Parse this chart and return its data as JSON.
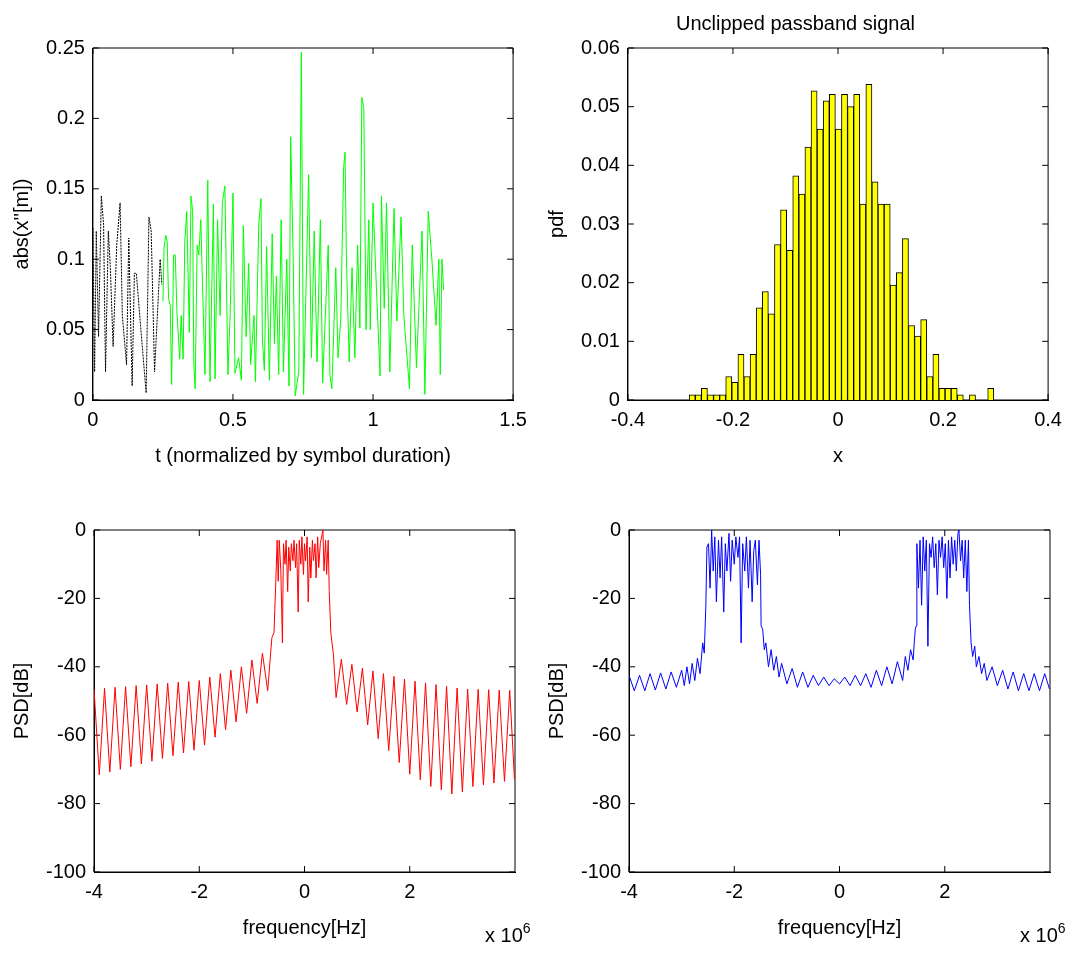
{
  "chart_data": [
    {
      "type": "line",
      "xlabel": "t (normalized by symbol duration)",
      "ylabel": "abs(x''[m])",
      "xlim": [
        0,
        1.5
      ],
      "xticks": [
        0,
        0.5,
        1,
        1.5
      ],
      "ylim": [
        0,
        0.25
      ],
      "yticks": [
        0,
        0.05,
        0.1,
        0.15,
        0.2,
        0.25
      ],
      "series": [
        {
          "color": "#000000",
          "line_style": "dotted",
          "x": [
            0,
            0.006,
            0.012,
            0.02,
            0.03,
            0.038,
            0.045,
            0.055,
            0.062,
            0.072,
            0.085,
            0.097,
            0.105,
            0.12,
            0.128,
            0.14,
            0.148,
            0.155,
            0.165,
            0.19,
            0.2,
            0.208,
            0.22,
            0.24,
            0.246
          ],
          "values": [
            0.122,
            0.02,
            0.12,
            0.045,
            0.145,
            0.125,
            0.02,
            0.12,
            0.095,
            0.038,
            0.11,
            0.14,
            0.06,
            0.025,
            0.115,
            0.01,
            0.09,
            0.09,
            0.065,
            0.005,
            0.13,
            0.12,
            0.02,
            0.1,
            0.082
          ]
        },
        {
          "color": "#00ff00",
          "line_style": "solid",
          "x": [
            0.25,
            0.254,
            0.26,
            0.265,
            0.27,
            0.276,
            0.281,
            0.288,
            0.294,
            0.3,
            0.31,
            0.315,
            0.322,
            0.328,
            0.335,
            0.344,
            0.35,
            0.356,
            0.36,
            0.365,
            0.372,
            0.378,
            0.385,
            0.391,
            0.4,
            0.41,
            0.418,
            0.43,
            0.436,
            0.445,
            0.454,
            0.462,
            0.471,
            0.482,
            0.49,
            0.5,
            0.507,
            0.52,
            0.53,
            0.537,
            0.547,
            0.556,
            0.563,
            0.575,
            0.58,
            0.592,
            0.6,
            0.605,
            0.612,
            0.62,
            0.63,
            0.64,
            0.648,
            0.655,
            0.663,
            0.672,
            0.68,
            0.692,
            0.7,
            0.706,
            0.715,
            0.722,
            0.735,
            0.744,
            0.752,
            0.77,
            0.78,
            0.79,
            0.8,
            0.812,
            0.82,
            0.84,
            0.846,
            0.853,
            0.867,
            0.875,
            0.885,
            0.895,
            0.9,
            0.905,
            0.915,
            0.925,
            0.935,
            0.945,
            0.953,
            0.96,
            0.967,
            0.975,
            0.985,
            0.99,
            1.0,
            1.01,
            1.025,
            1.03,
            1.04,
            1.048,
            1.06,
            1.075,
            1.085,
            1.1,
            1.11,
            1.13,
            1.14,
            1.155,
            1.175,
            1.185,
            1.197,
            1.21,
            1.225,
            1.235,
            1.24,
            1.246,
            1.252
          ],
          "values": [
            0.07,
            0.108,
            0.117,
            0.113,
            0.072,
            0.067,
            0.011,
            0.103,
            0.103,
            0.062,
            0.029,
            0.06,
            0.029,
            0.113,
            0.134,
            0.048,
            0.145,
            0.134,
            0.026,
            0.008,
            0.11,
            0.103,
            0.128,
            0.084,
            0.018,
            0.156,
            0.013,
            0.139,
            0.015,
            0.128,
            0.06,
            0.14,
            0.152,
            0.018,
            0.061,
            0.147,
            0.019,
            0.03,
            0.014,
            0.124,
            0.045,
            0.097,
            0.025,
            0.06,
            0.013,
            0.125,
            0.143,
            0.043,
            0.021,
            0.109,
            0.014,
            0.118,
            0.04,
            0.088,
            0.018,
            0.128,
            0.02,
            0.1,
            0.01,
            0.187,
            0.1,
            0.003,
            0.02,
            0.247,
            0.004,
            0.16,
            0.03,
            0.12,
            0.027,
            0.128,
            0.012,
            0.11,
            0.018,
            0.008,
            0.094,
            0.03,
            0.058,
            0.165,
            0.176,
            0.1,
            0.027,
            0.094,
            0.03,
            0.11,
            0.051,
            0.215,
            0.207,
            0.05,
            0.128,
            0.05,
            0.14,
            0.09,
            0.017,
            0.145,
            0.065,
            0.14,
            0.02,
            0.136,
            0.056,
            0.13,
            0.06,
            0.008,
            0.11,
            0.023,
            0.12,
            0.004,
            0.134,
            0.1,
            0.053,
            0.1,
            0.018,
            0.1,
            0.078
          ]
        }
      ]
    },
    {
      "type": "histogram",
      "title": "Unclipped passband signal",
      "xlabel": "x",
      "ylabel": "pdf",
      "xlim": [
        -0.4,
        0.4
      ],
      "xticks": [
        -0.4,
        -0.2,
        0,
        0.2,
        0.4
      ],
      "ylim": [
        0,
        0.06
      ],
      "yticks": [
        0,
        0.01,
        0.02,
        0.03,
        0.04,
        0.05,
        0.06
      ],
      "color": "#ffff00",
      "bins": [
        -0.2834,
        -0.2718,
        -0.2602,
        -0.2486,
        -0.237,
        -0.2254,
        -0.2138,
        -0.2022,
        -0.1906,
        -0.179,
        -0.1674,
        -0.1558,
        -0.1442,
        -0.1326,
        -0.121,
        -0.1094,
        -0.0978,
        -0.0862,
        -0.0746,
        -0.063,
        -0.0514,
        -0.0398,
        -0.0282,
        -0.0166,
        -0.005,
        0.0066,
        0.0182,
        0.0298,
        0.0414,
        0.053,
        0.0646,
        0.0762,
        0.0878,
        0.0994,
        0.111,
        0.1226,
        0.1342,
        0.1458,
        0.1574,
        0.169,
        0.1806,
        0.1922,
        0.2038,
        0.2154,
        0.227,
        0.2386,
        0.2502,
        0.2618,
        0.2734,
        0.285,
        0.2966
      ],
      "values": [
        0.0009,
        0.0009,
        0.002,
        0.0009,
        0.0009,
        0.0009,
        0.004,
        0.003,
        0.0078,
        0.004,
        0.0078,
        0.0157,
        0.0185,
        0.0147,
        0.0265,
        0.0324,
        0.0255,
        0.0382,
        0.0351,
        0.0431,
        0.0527,
        0.0462,
        0.051,
        0.0521,
        0.0462,
        0.0521,
        0.05,
        0.0521,
        0.0334,
        0.0538,
        0.0372,
        0.0334,
        0.0334,
        0.0196,
        0.0217,
        0.0275,
        0.0127,
        0.0109,
        0.0137,
        0.004,
        0.0078,
        0.002,
        0.002,
        0.002,
        0.0009,
        0,
        0.0009,
        0,
        0,
        0.002
      ]
    },
    {
      "type": "line",
      "xlabel": "frequency[Hz]",
      "ylabel": "PSD[dB]",
      "xlim": [
        -4,
        4
      ],
      "xticks": [
        -4,
        -2,
        0,
        2
      ],
      "ylim": [
        -100,
        0
      ],
      "yticks": [
        -100,
        -80,
        -60,
        -40,
        -20,
        0
      ],
      "annotations": [
        "x 10$^{6}$"
      ],
      "series": [
        {
          "color": "#ff0000",
          "line_style": "solid",
          "x": [
            -4,
            -3.9,
            -3.8,
            -3.7,
            -3.6,
            -3.5,
            -3.4,
            -3.3,
            -3.2,
            -3.1,
            -3,
            -2.9,
            -2.8,
            -2.7,
            -2.6,
            -2.5,
            -2.4,
            -2.3,
            -2.2,
            -2.1,
            -2,
            -1.9,
            -1.8,
            -1.7,
            -1.6,
            -1.5,
            -1.4,
            -1.3,
            -1.2,
            -1.1,
            -1,
            -0.9,
            -0.8,
            -0.7,
            -0.62,
            -0.58,
            -0.55,
            -0.52,
            -0.5,
            -0.48,
            -0.45,
            -0.42,
            -0.4,
            -0.37,
            -0.35,
            -0.32,
            -0.3,
            -0.27,
            -0.25,
            -0.22,
            -0.2,
            -0.17,
            -0.15,
            -0.12,
            -0.1,
            -0.07,
            -0.05,
            -0.02,
            0,
            0.02,
            0.05,
            0.07,
            0.1,
            0.12,
            0.15,
            0.17,
            0.2,
            0.22,
            0.25,
            0.27,
            0.3,
            0.35,
            0.37,
            0.4,
            0.42,
            0.45,
            0.47,
            0.5,
            0.55,
            0.6,
            0.7,
            0.8,
            0.9,
            1,
            1.1,
            1.2,
            1.3,
            1.4,
            1.5,
            1.6,
            1.7,
            1.8,
            1.9,
            2,
            2.1,
            2.2,
            2.3,
            2.4,
            2.5,
            2.6,
            2.7,
            2.8,
            2.9,
            3,
            3.1,
            3.2,
            3.3,
            3.4,
            3.5,
            3.6,
            3.7,
            3.8,
            3.9,
            3.99
          ],
          "values": [
            -46.5,
            -71.6,
            -46.3,
            -70.8,
            -46,
            -70,
            -45.8,
            -69.2,
            -45.5,
            -68.4,
            -45.3,
            -67.6,
            -45,
            -66.8,
            -44.8,
            -66,
            -44.5,
            -65.2,
            -44.3,
            -64.4,
            -44,
            -62.9,
            -43,
            -60.6,
            -42,
            -58.4,
            -41,
            -56.1,
            -40,
            -53.6,
            -38,
            -50.7,
            -36,
            -47,
            -31.5,
            -30,
            -17,
            -3,
            -15,
            -3,
            -12,
            -33,
            -4,
            -10,
            -3,
            -18,
            -5,
            -12,
            -4,
            -9,
            -3,
            -11,
            -4,
            -24,
            -3,
            -10,
            -2,
            -13,
            -4,
            -9,
            -2,
            -21,
            -5,
            -14,
            -3,
            -9,
            -4,
            -14,
            -2,
            -11,
            -4,
            0,
            -12,
            -3,
            -13,
            -3,
            -18,
            -30,
            -36.5,
            -49,
            -37.8,
            -51,
            -39.3,
            -53.2,
            -40.4,
            -57,
            -41.2,
            -61,
            -42,
            -64.5,
            -42.8,
            -68,
            -43.6,
            -71.4,
            -44.2,
            -73,
            -44.7,
            -75,
            -45.2,
            -76,
            -45.7,
            -77.2,
            -46.2,
            -76.6,
            -46.5,
            -75,
            -46.6,
            -74.5,
            -46.7,
            -74,
            -46.8,
            -73.5,
            -46.9,
            -72.9
          ]
        }
      ]
    },
    {
      "type": "line",
      "xlabel": "frequency[Hz]",
      "ylabel": "PSD[dB]",
      "xlim": [
        -4,
        4
      ],
      "xticks": [
        -4,
        -2,
        0,
        2
      ],
      "ylim": [
        -100,
        0
      ],
      "yticks": [
        -100,
        -80,
        -60,
        -40,
        -20,
        0
      ],
      "annotations": [
        "x 10$^{6}$"
      ],
      "series": [
        {
          "color": "#0000ff",
          "line_style": "solid",
          "x": [
            -4,
            -3.9,
            -3.8,
            -3.7,
            -3.6,
            -3.5,
            -3.4,
            -3.3,
            -3.2,
            -3.1,
            -3,
            -2.95,
            -2.9,
            -2.85,
            -2.8,
            -2.75,
            -2.7,
            -2.65,
            -2.6,
            -2.57,
            -2.54,
            -2.52,
            -2.49,
            -2.46,
            -2.43,
            -2.4,
            -2.37,
            -2.34,
            -2.3,
            -2.27,
            -2.24,
            -2.2,
            -2.17,
            -2.14,
            -2.1,
            -2.07,
            -2.04,
            -2,
            -1.97,
            -1.93,
            -1.9,
            -1.87,
            -1.84,
            -1.8,
            -1.77,
            -1.73,
            -1.7,
            -1.66,
            -1.63,
            -1.6,
            -1.56,
            -1.53,
            -1.5,
            -1.49,
            -1.46,
            -1.45,
            -1.43,
            -1.4,
            -1.35,
            -1.3,
            -1.25,
            -1.2,
            -1.15,
            -1.1,
            -1,
            -0.9,
            -0.8,
            -0.7,
            -0.6,
            -0.5,
            -0.4,
            -0.3,
            -0.2,
            -0.1,
            0,
            0.1,
            0.2,
            0.3,
            0.4,
            0.5,
            0.6,
            0.7,
            0.8,
            0.9,
            1,
            1.1,
            1.2,
            1.25,
            1.3,
            1.35,
            1.4,
            1.42,
            1.44,
            1.46,
            1.47,
            1.5,
            1.53,
            1.56,
            1.59,
            1.62,
            1.65,
            1.68,
            1.71,
            1.74,
            1.77,
            1.8,
            1.83,
            1.86,
            1.89,
            1.92,
            1.95,
            1.98,
            2.01,
            2.04,
            2.07,
            2.1,
            2.13,
            2.16,
            2.19,
            2.22,
            2.25,
            2.27,
            2.3,
            2.33,
            2.36,
            2.39,
            2.42,
            2.45,
            2.47,
            2.5,
            2.53,
            2.57,
            2.6,
            2.65,
            2.7,
            2.75,
            2.8,
            2.9,
            3,
            3.1,
            3.2,
            3.3,
            3.4,
            3.5,
            3.6,
            3.7,
            3.8,
            3.9,
            3.99
          ],
          "values": [
            -42.5,
            -47,
            -42.5,
            -47,
            -42,
            -46.8,
            -41.8,
            -46.5,
            -41.5,
            -46,
            -41,
            -45.5,
            -40,
            -45,
            -39,
            -44,
            -37.5,
            -42,
            -33,
            -36,
            -22,
            -5,
            -4,
            -17,
            0,
            -12,
            -2,
            -21,
            -3,
            -14,
            -2,
            -24,
            -4,
            -12,
            -1,
            -15,
            -3,
            -10,
            -2,
            -8,
            -2,
            -33,
            -4,
            -12,
            -2,
            -17,
            -3,
            -21,
            -6,
            -3,
            -16,
            -3,
            -13,
            -28,
            -29,
            -31,
            -35,
            -33,
            -40,
            -35,
            -41,
            -37,
            -43,
            -39,
            -45,
            -40.5,
            -46,
            -41.5,
            -46,
            -42.5,
            -45.5,
            -43,
            -45.5,
            -43.5,
            -45,
            -43,
            -45.5,
            -42.5,
            -45.5,
            -42,
            -46,
            -41,
            -45.5,
            -40,
            -45,
            -38.5,
            -44,
            -37,
            -41,
            -35,
            -38,
            -33,
            -29,
            -28,
            -4,
            -17,
            -3,
            -22,
            -2,
            -12,
            -3,
            -34,
            -4,
            -8,
            -2,
            -11,
            -4,
            -19,
            -3,
            -8,
            -2,
            -11,
            -4,
            -20,
            -3,
            -14,
            -2,
            -10,
            -3,
            -12,
            -1,
            0,
            -9,
            -3,
            -14,
            -3,
            -18,
            -3,
            -22,
            -33,
            -37,
            -34,
            -40,
            -37,
            -42,
            -39,
            -44,
            -40,
            -45.5,
            -41,
            -46.5,
            -41.5,
            -47,
            -42,
            -47,
            -42,
            -47,
            -42,
            -46.5
          ]
        }
      ]
    }
  ]
}
